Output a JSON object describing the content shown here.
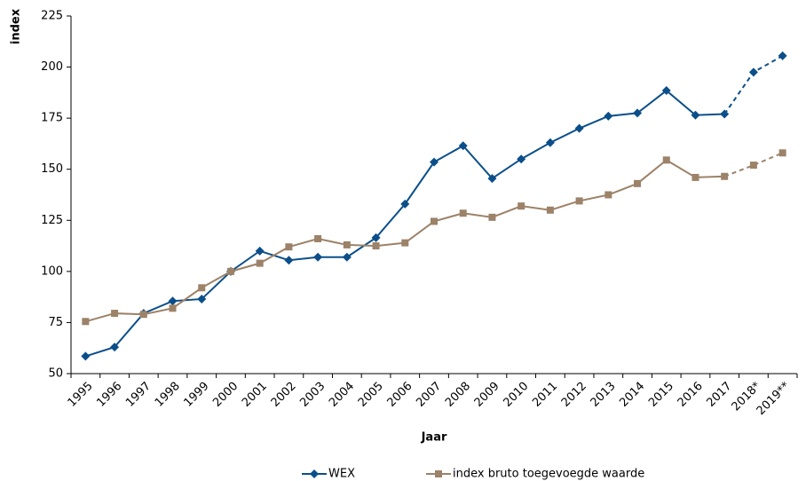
{
  "chart_data": {
    "type": "line",
    "y_label": "index",
    "x_label": "Jaar",
    "categories": [
      "1995",
      "1996",
      "1997",
      "1998",
      "1999",
      "2000",
      "2001",
      "2002",
      "2003",
      "2004",
      "2005",
      "2006",
      "2007",
      "2008",
      "2009",
      "2010",
      "2011",
      "2012",
      "2013",
      "2014",
      "2015",
      "2016",
      "2017",
      "2018*",
      "2019**"
    ],
    "series": [
      {
        "name": "WEX",
        "color": "#0b4f8a",
        "marker": "diamond",
        "values": [
          58.5,
          63,
          79.5,
          85.5,
          86.5,
          100,
          110,
          105.5,
          107,
          107,
          116.5,
          133,
          153.5,
          161.5,
          145.5,
          155,
          163,
          170,
          176,
          177.5,
          188.5,
          176.5,
          177,
          197.5,
          205.5
        ]
      },
      {
        "name": "index bruto toegevoegde waarde",
        "color": "#9c8268",
        "marker": "square",
        "values": [
          75.5,
          79.5,
          79,
          82,
          92,
          100,
          104,
          112,
          116,
          113,
          112.5,
          114,
          124.5,
          128.5,
          126.5,
          132,
          130,
          134.5,
          137.5,
          143,
          154.5,
          146,
          146.5,
          152,
          158
        ]
      }
    ],
    "dashed_from_index": 22,
    "ylim": [
      50,
      225
    ],
    "yticks": [
      50,
      75,
      100,
      125,
      150,
      175,
      200,
      225
    ],
    "grid": false,
    "legend": "bottom"
  }
}
